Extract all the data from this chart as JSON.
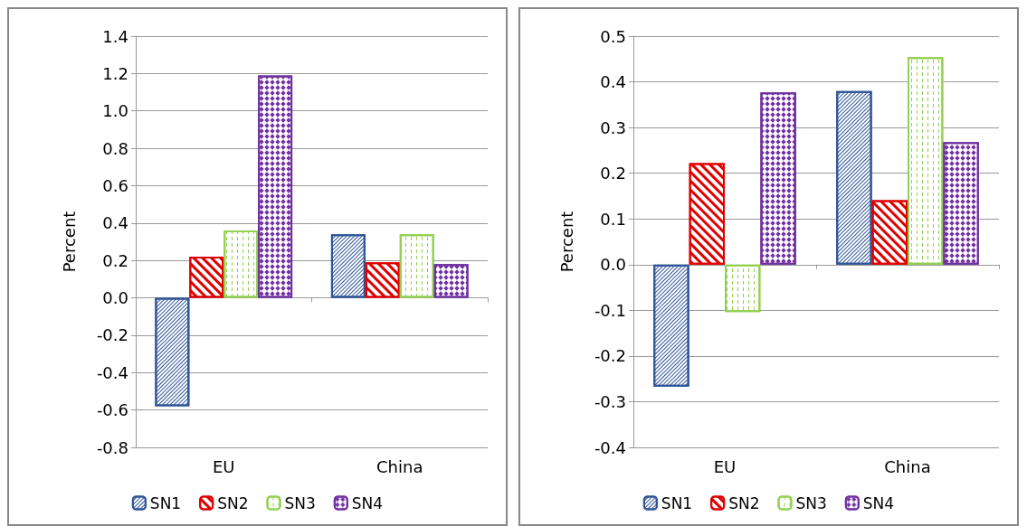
{
  "chart_data": [
    {
      "type": "bar",
      "ylabel": "Percent",
      "categories": [
        "EU",
        "China"
      ],
      "ylim": [
        -0.8,
        1.4
      ],
      "yticks": [
        {
          "value": -0.8,
          "label": "-0.8"
        },
        {
          "value": -0.6,
          "label": "-0.6"
        },
        {
          "value": -0.4,
          "label": "-0.4"
        },
        {
          "value": -0.2,
          "label": "-0.2"
        },
        {
          "value": 0,
          "label": "0.0"
        },
        {
          "value": 0.2,
          "label": "0.2"
        },
        {
          "value": 0.4,
          "label": "0.4"
        },
        {
          "value": 0.6,
          "label": "0.6"
        },
        {
          "value": 0.8,
          "label": "0.8"
        },
        {
          "value": 1,
          "label": "1.0"
        },
        {
          "value": 1.2,
          "label": "1.2"
        },
        {
          "value": 1.4,
          "label": "1.4"
        }
      ],
      "grid": "y",
      "legend": "bottom",
      "series": [
        {
          "name": "SN1",
          "color": "#2f5597",
          "values": [
            -0.58,
            0.34
          ]
        },
        {
          "name": "SN2",
          "color": "#e00000",
          "values": [
            0.22,
            0.19
          ]
        },
        {
          "name": "SN3",
          "color": "#92d050",
          "values": [
            0.36,
            0.34
          ]
        },
        {
          "name": "SN4",
          "color": "#7030a0",
          "values": [
            1.19,
            0.18
          ]
        }
      ]
    },
    {
      "type": "bar",
      "ylabel": "Percent",
      "categories": [
        "EU",
        "China"
      ],
      "ylim": [
        -0.4,
        0.5
      ],
      "yticks": [
        {
          "value": -0.4,
          "label": "-0.4"
        },
        {
          "value": -0.3,
          "label": "-0.3"
        },
        {
          "value": -0.2,
          "label": "-0.2"
        },
        {
          "value": -0.1,
          "label": "-0.1"
        },
        {
          "value": 0,
          "label": "0.0"
        },
        {
          "value": 0.1,
          "label": "0.1"
        },
        {
          "value": 0.2,
          "label": "0.2"
        },
        {
          "value": 0.3,
          "label": "0.3"
        },
        {
          "value": 0.4,
          "label": "0.4"
        },
        {
          "value": 0.5,
          "label": "0.5"
        }
      ],
      "grid": "y",
      "legend": "bottom",
      "series": [
        {
          "name": "SN1",
          "color": "#2f5597",
          "values": [
            -0.267,
            0.38
          ]
        },
        {
          "name": "SN2",
          "color": "#e00000",
          "values": [
            0.222,
            0.141
          ]
        },
        {
          "name": "SN3",
          "color": "#92d050",
          "values": [
            -0.104,
            0.454
          ]
        },
        {
          "name": "SN4",
          "color": "#7030a0",
          "values": [
            0.377,
            0.268
          ]
        }
      ]
    }
  ]
}
